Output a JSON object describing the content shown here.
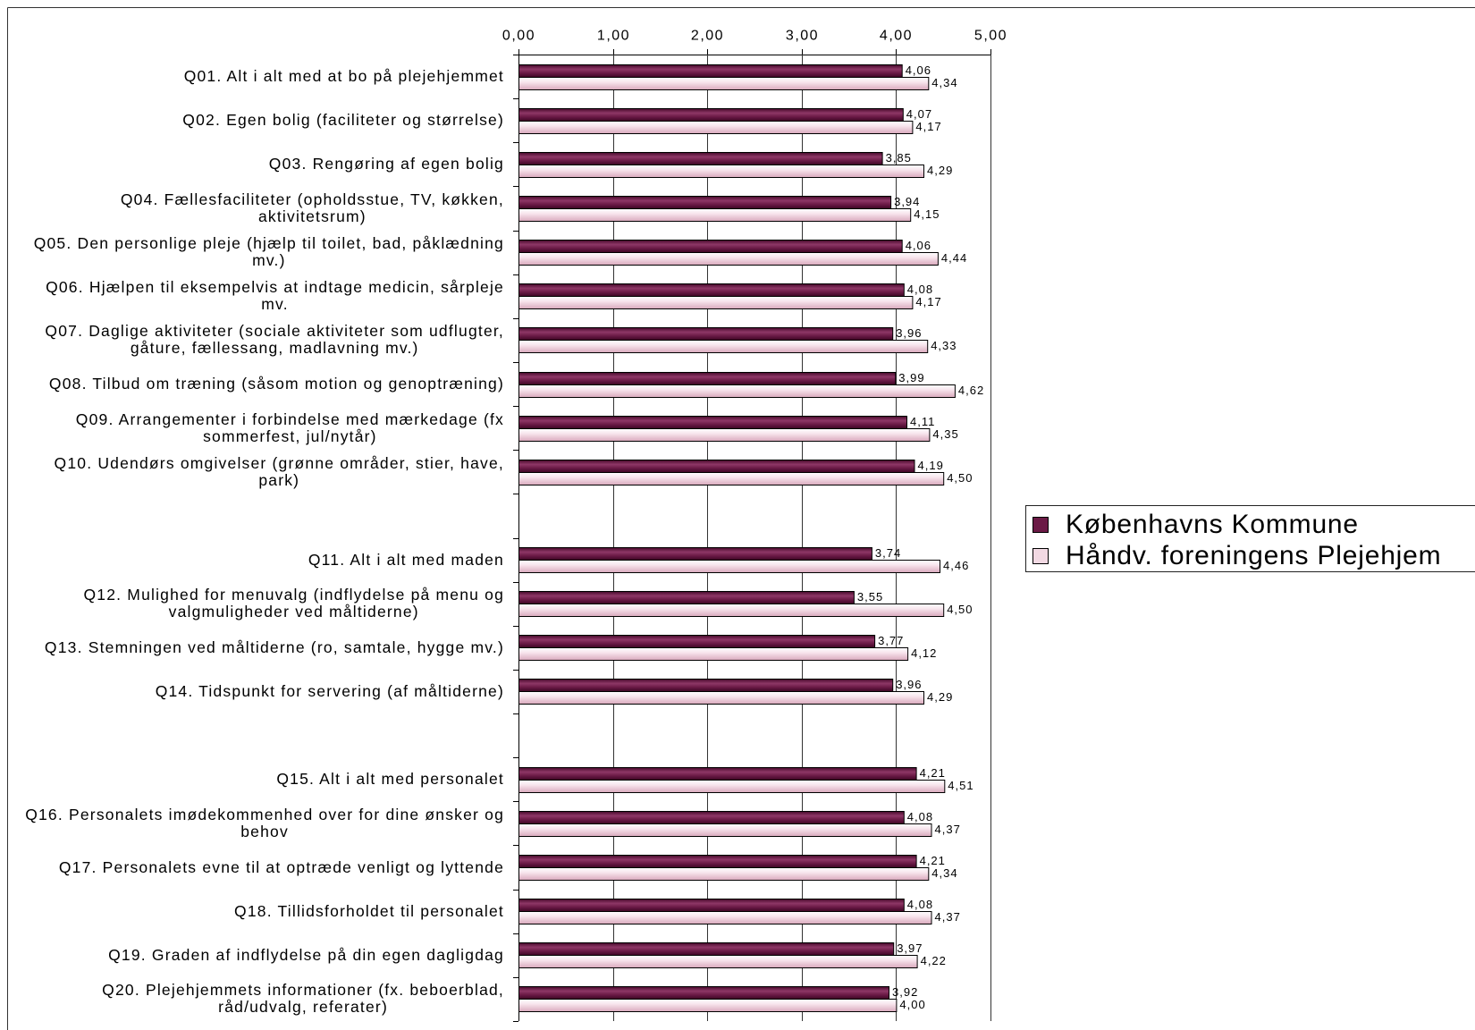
{
  "chart_data": {
    "type": "bar",
    "orientation": "horizontal",
    "categories": [
      "Q01. Alt i alt med at bo på plejehjemmet",
      "Q02. Egen bolig (faciliteter og størrelse)",
      "Q03. Rengøring af egen bolig",
      "Q04. Fællesfaciliteter (opholdsstue, TV, køkken,\naktivitetsrum)",
      "Q05. Den personlige pleje (hjælp til toilet, bad, påklædning\nmv.)",
      "Q06. Hjælpen til eksempelvis at indtage medicin, sårpleje\nmv.",
      "Q07. Daglige aktiviteter (sociale aktiviteter som udflugter,\ngåture, fællessang, madlavning mv.)",
      "Q08. Tilbud om træning (såsom motion og genoptræning)",
      "Q09. Arrangementer i forbindelse med mærkedage (fx\nsommerfest, jul/nytår)",
      "Q10. Udendørs omgivelser (grønne områder, stier, have,\npark)",
      "",
      "Q11. Alt i alt med maden",
      "Q12. Mulighed for menuvalg (indflydelse på menu og\nvalgmuligheder ved måltiderne)",
      "Q13. Stemningen ved måltiderne (ro, samtale, hygge mv.)",
      "Q14. Tidspunkt for servering (af måltiderne)",
      "",
      "Q15. Alt i alt med personalet",
      "Q16. Personalets imødekommenhed over for dine ønsker og\nbehov",
      "Q17. Personalets evne til at optræde venligt og lyttende",
      "Q18. Tillidsforholdet til personalet",
      "Q19. Graden af indflydelse på din egen dagligdag",
      "Q20. Plejehjemmets informationer (fx. beboerblad,\nråd/udvalg, referater)"
    ],
    "series": [
      {
        "name": "Københavns Kommune",
        "color": "#6b1a46",
        "values": [
          4.06,
          4.07,
          3.85,
          3.94,
          4.06,
          4.08,
          3.96,
          3.99,
          4.11,
          4.19,
          null,
          3.74,
          3.55,
          3.77,
          3.96,
          null,
          4.21,
          4.08,
          4.21,
          4.08,
          3.97,
          3.92
        ]
      },
      {
        "name": "Håndv. foreningens Plejehjem",
        "color": "#f2d9e3",
        "values": [
          4.34,
          4.17,
          4.29,
          4.15,
          4.44,
          4.17,
          4.33,
          4.62,
          4.35,
          4.5,
          null,
          4.46,
          4.5,
          4.12,
          4.29,
          null,
          4.51,
          4.37,
          4.34,
          4.37,
          4.22,
          4.0
        ]
      }
    ],
    "xlim": [
      0,
      5
    ],
    "x_ticks": [
      0,
      1,
      2,
      3,
      4,
      5
    ],
    "x_tick_labels": [
      "0,00",
      "1,00",
      "2,00",
      "3,00",
      "4,00",
      "5,00"
    ],
    "x_axis_position": "top",
    "value_labels": true,
    "grid": "vertical",
    "legend_position": "right"
  }
}
